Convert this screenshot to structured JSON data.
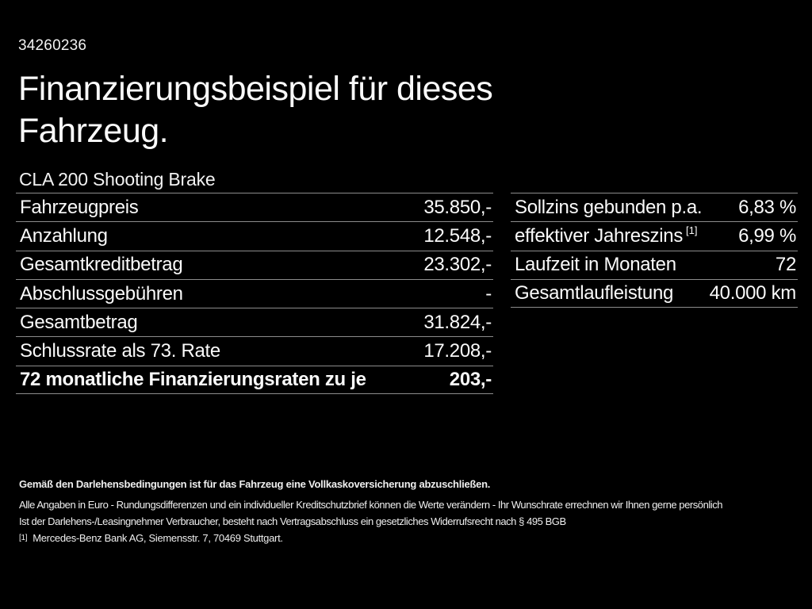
{
  "page": {
    "id_number": "34260236",
    "title_line1": "Finanzierungsbeispiel für dieses",
    "title_line2": "Fahrzeug.",
    "vehicle_model": "CLA 200 Shooting Brake"
  },
  "left_table": {
    "rows": [
      {
        "label": "Fahrzeugpreis",
        "value": "35.850,-"
      },
      {
        "label": "Anzahlung",
        "value": "12.548,-"
      },
      {
        "label": "Gesamtkreditbetrag",
        "value": "23.302,-"
      },
      {
        "label": "Abschlussgebühren",
        "value": "-"
      },
      {
        "label": "Gesamtbetrag",
        "value": "31.824,-"
      },
      {
        "label": "Schlussrate als 73. Rate",
        "value": "17.208,-"
      },
      {
        "label": "72 monatliche Finanzierungsraten zu je",
        "value": "203,-"
      }
    ]
  },
  "right_table": {
    "rows": [
      {
        "label": "Sollzins gebunden p.a.",
        "value": "6,83 %"
      },
      {
        "label": "effektiver Jahreszins",
        "sup": "[1]",
        "value": "6,99 %"
      },
      {
        "label": "Laufzeit in Monaten",
        "value": "72"
      },
      {
        "label": "Gesamtlaufleistung",
        "value": "40.000 km"
      }
    ]
  },
  "footer": {
    "insurance_note": "Gemäß den Darlehensbedingungen ist für das Fahrzeug eine Vollkaskoversicherung abzuschließen.",
    "disclaimer_line1": "Alle Angaben in Euro - Rundungsdifferenzen und ein individueller Kreditschutzbrief können die Werte verändern - Ihr Wunschrate errechnen wir Ihnen gerne persönlich",
    "disclaimer_line2": "Ist der Darlehens-/Leasingnehmer Verbraucher, besteht nach Vertragsabschluss ein gesetzliches Widerrufsrecht nach § 495 BGB",
    "footnote_marker": "[1]",
    "footnote_text": "Mercedes-Benz Bank AG, Siemensstr. 7, 70469 Stuttgart."
  },
  "colors": {
    "background": "#000000",
    "text": "#f5f5f5",
    "divider": "#8c8c8c"
  }
}
